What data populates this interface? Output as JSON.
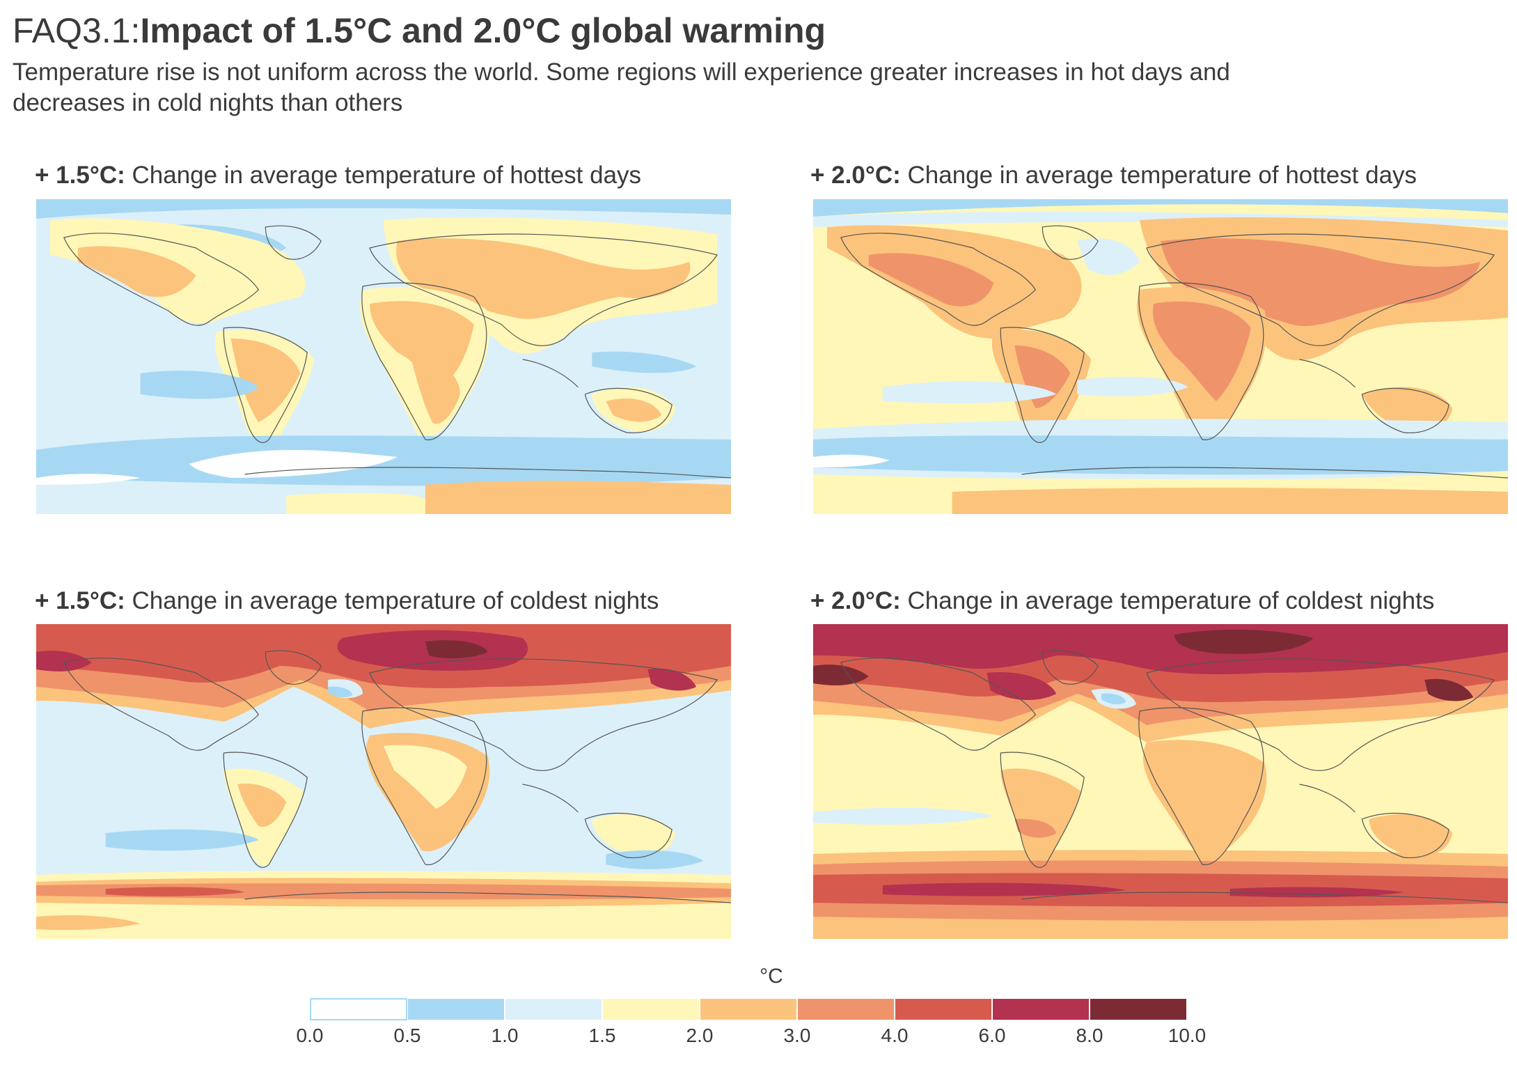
{
  "header": {
    "title_prefix": "FAQ3.1:",
    "title_main": "Impact of 1.5°C and 2.0°C global warming",
    "subtitle": "Temperature rise is not uniform across the world. Some regions will experience greater increases in hot days and decreases in cold nights than others"
  },
  "panels": [
    {
      "warming": "+ 1.5°C:",
      "description": "Change in average temperature of hottest days"
    },
    {
      "warming": "+ 2.0°C:",
      "description": "Change in average temperature of hottest days"
    },
    {
      "warming": "+ 1.5°C:",
      "description": "Change in average temperature of coldest nights"
    },
    {
      "warming": "+ 2.0°C:",
      "description": "Change in average temperature of coldest nights"
    }
  ],
  "legend": {
    "unit": "°C",
    "ticks": [
      "0.0",
      "0.5",
      "1.0",
      "1.5",
      "2.0",
      "3.0",
      "4.0",
      "6.0",
      "8.0",
      "10.0"
    ],
    "bins": [
      {
        "range": [
          0.0,
          0.5
        ],
        "color": "#ffffff"
      },
      {
        "range": [
          0.5,
          1.0
        ],
        "color": "#a6d8f3"
      },
      {
        "range": [
          1.0,
          1.5
        ],
        "color": "#dcf0fa"
      },
      {
        "range": [
          1.5,
          2.0
        ],
        "color": "#fff7b8"
      },
      {
        "range": [
          2.0,
          3.0
        ],
        "color": "#fbc37c"
      },
      {
        "range": [
          3.0,
          4.0
        ],
        "color": "#ef936a"
      },
      {
        "range": [
          4.0,
          6.0
        ],
        "color": "#d65b4e"
      },
      {
        "range": [
          6.0,
          8.0
        ],
        "color": "#b3324f"
      },
      {
        "range": [
          8.0,
          10.0
        ],
        "color": "#7c2b35"
      }
    ]
  },
  "colors": {
    "text": "#3a3a3a",
    "coastline": "#555555"
  }
}
